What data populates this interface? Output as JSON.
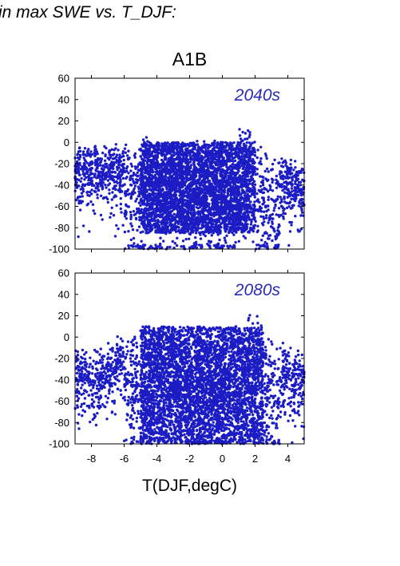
{
  "heading": "in max SWE vs. T_DJF:",
  "colors": {
    "points": "#1c1cc4",
    "label": "#2a2ab5",
    "axis": "#000000"
  },
  "chart_data": [
    {
      "type": "scatter",
      "title": "A1B",
      "annotation": "2040s",
      "xlim": [
        -9,
        5
      ],
      "ylim": [
        -100,
        60
      ],
      "xticks": [
        -8,
        -6,
        -4,
        -2,
        0,
        2,
        4
      ],
      "yticks": [
        -100,
        -80,
        -60,
        -40,
        -20,
        0,
        20,
        40,
        60
      ],
      "show_x_tick_labels": false,
      "xlabel": "",
      "ylabel": "",
      "grid": false,
      "point_cloud": {
        "x_range": [
          -9,
          5
        ],
        "y_range": [
          -100,
          20
        ],
        "dense_core_x": [
          -5,
          2
        ],
        "dense_core_y": [
          -85,
          0
        ],
        "top_edge_max_y": 20,
        "top_edge_max_at_x": 1.5
      }
    },
    {
      "type": "scatter",
      "title": "",
      "annotation": "2080s",
      "xlim": [
        -9,
        5
      ],
      "ylim": [
        -100,
        60
      ],
      "xticks": [
        -8,
        -6,
        -4,
        -2,
        0,
        2,
        4
      ],
      "xtick_labels": [
        "-8",
        "-6",
        "-4",
        "-2",
        "0",
        "2",
        "4"
      ],
      "yticks": [
        -100,
        -80,
        -60,
        -40,
        -20,
        0,
        20,
        40,
        60
      ],
      "show_x_tick_labels": true,
      "xlabel": "T(DJF,degC)",
      "ylabel": "",
      "grid": false,
      "point_cloud": {
        "x_range": [
          -9,
          5
        ],
        "y_range": [
          -100,
          23
        ],
        "dense_core_x": [
          -5,
          2.5
        ],
        "dense_core_y": [
          -100,
          10
        ],
        "top_edge_max_y": 23,
        "top_edge_max_at_x": 2
      }
    }
  ]
}
